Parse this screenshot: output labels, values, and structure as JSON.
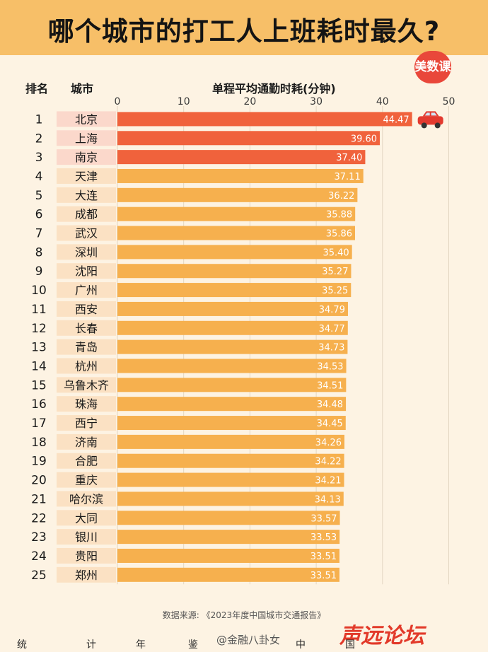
{
  "title": "哪个城市的打工人上班耗时最久?",
  "brand_badge": "美数课",
  "headers": {
    "rank": "排名",
    "city": "城市",
    "metric": "单程平均通勤时耗(分钟)"
  },
  "colors": {
    "top": "#f0623c",
    "rest": "#f6b04e",
    "city_cell_top": "#fbd8cb",
    "city_cell_rest": "#fbe1c3",
    "background": "#fdf3e3"
  },
  "chart_data": {
    "type": "bar",
    "orientation": "horizontal",
    "xlim": [
      0,
      50
    ],
    "xticks": [
      0,
      10,
      20,
      30,
      40,
      50
    ],
    "grid": true,
    "categories": [
      "北京",
      "上海",
      "南京",
      "天津",
      "大连",
      "成都",
      "武汉",
      "深圳",
      "沈阳",
      "广州",
      "西安",
      "长春",
      "青岛",
      "杭州",
      "乌鲁木齐",
      "珠海",
      "西宁",
      "济南",
      "合肥",
      "重庆",
      "哈尔滨",
      "大同",
      "银川",
      "贵阳",
      "郑州"
    ],
    "ranks": [
      1,
      2,
      3,
      4,
      5,
      6,
      7,
      8,
      9,
      10,
      11,
      12,
      13,
      14,
      15,
      16,
      17,
      18,
      19,
      20,
      21,
      22,
      23,
      24,
      25
    ],
    "values": [
      44.47,
      39.6,
      37.4,
      37.11,
      36.22,
      35.88,
      35.86,
      35.4,
      35.27,
      35.25,
      34.79,
      34.77,
      34.73,
      34.53,
      34.51,
      34.48,
      34.45,
      34.26,
      34.22,
      34.21,
      34.13,
      33.57,
      33.53,
      33.51,
      33.51
    ],
    "value_labels": [
      "44.47",
      "39.60",
      "37.40",
      "37.11",
      "36.22",
      "35.88",
      "35.86",
      "35.40",
      "35.27",
      "35.25",
      "34.79",
      "34.77",
      "34.73",
      "34.53",
      "34.51",
      "34.48",
      "34.45",
      "34.26",
      "34.22",
      "34.21",
      "34.13",
      "33.57",
      "33.53",
      "33.51",
      "33.51"
    ],
    "highlight_count": 3
  },
  "source": "数据来源: 《2023年度中国城市交通报告》",
  "footer_chars": [
    "统",
    "计",
    "年",
    "鉴",
    "中",
    "国"
  ],
  "watermark": {
    "weibo": "@金融八卦女",
    "site": "声远论坛"
  }
}
